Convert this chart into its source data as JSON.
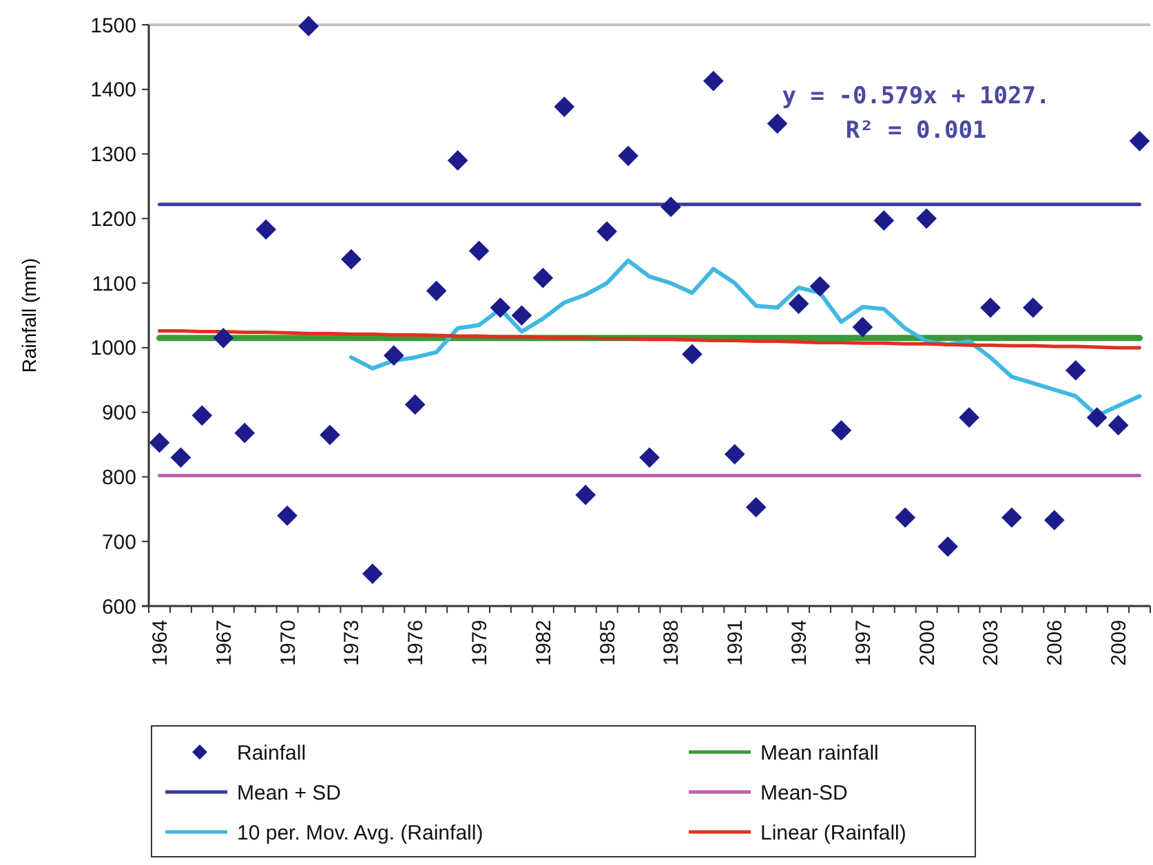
{
  "chart_data": {
    "type": "scatter",
    "ylabel": "Rainfall (mm)",
    "categories": [
      "1964",
      null,
      null,
      "1967",
      null,
      null,
      "1970",
      null,
      null,
      "1973",
      null,
      null,
      "1976",
      null,
      null,
      "1979",
      null,
      null,
      "1982",
      null,
      null,
      "1985",
      null,
      null,
      "1988",
      null,
      null,
      "1991",
      null,
      null,
      "1994",
      null,
      null,
      "1997",
      null,
      null,
      "2000",
      null,
      null,
      "2003",
      null,
      null,
      "2006",
      null,
      null,
      "2009",
      null
    ],
    "ylim": [
      600,
      1500
    ],
    "yticks": [
      600,
      700,
      800,
      900,
      1000,
      1100,
      1200,
      1300,
      1400,
      1500
    ],
    "grid": false,
    "legend": "bottom",
    "marker": "diamond",
    "annotations": [
      "y = -0.579x + 1027.",
      "R² = 0.001"
    ],
    "series": [
      {
        "name": "Rainfall",
        "color": "#1c1c8c",
        "values": [
          853,
          830,
          895,
          1015,
          868,
          1183,
          740,
          1498,
          865,
          1137,
          650,
          988,
          912,
          1088,
          1290,
          1150,
          1062,
          1050,
          1108,
          1373,
          772,
          1180,
          1297,
          830,
          1218,
          990,
          1413,
          835,
          753,
          1347,
          1068,
          1095,
          872,
          1032,
          1197,
          737,
          1200,
          692,
          892,
          1062,
          737,
          1062,
          733,
          965,
          892,
          880,
          1320
        ]
      },
      {
        "name": "Mean rainfall",
        "type": "line",
        "color": "#3a9a3a",
        "marker": "none",
        "values": [
          1015,
          1015,
          1015,
          1015,
          1015,
          1015,
          1015,
          1015,
          1015,
          1015,
          1015,
          1015,
          1015,
          1015,
          1015,
          1015,
          1015,
          1015,
          1015,
          1015,
          1015,
          1015,
          1015,
          1015,
          1015,
          1015,
          1015,
          1015,
          1015,
          1015,
          1015,
          1015,
          1015,
          1015,
          1015,
          1015,
          1015,
          1015,
          1015,
          1015,
          1015,
          1015,
          1015,
          1015,
          1015,
          1015,
          1015
        ]
      },
      {
        "name": "Mean + SD",
        "type": "line",
        "color": "#3a3aa0",
        "marker": "none",
        "values": [
          1222,
          1222,
          1222,
          1222,
          1222,
          1222,
          1222,
          1222,
          1222,
          1222,
          1222,
          1222,
          1222,
          1222,
          1222,
          1222,
          1222,
          1222,
          1222,
          1222,
          1222,
          1222,
          1222,
          1222,
          1222,
          1222,
          1222,
          1222,
          1222,
          1222,
          1222,
          1222,
          1222,
          1222,
          1222,
          1222,
          1222,
          1222,
          1222,
          1222,
          1222,
          1222,
          1222,
          1222,
          1222,
          1222,
          1222
        ]
      },
      {
        "name": "Mean-SD",
        "type": "line",
        "color": "#c060b0",
        "marker": "none",
        "values": [
          802,
          802,
          802,
          802,
          802,
          802,
          802,
          802,
          802,
          802,
          802,
          802,
          802,
          802,
          802,
          802,
          802,
          802,
          802,
          802,
          802,
          802,
          802,
          802,
          802,
          802,
          802,
          802,
          802,
          802,
          802,
          802,
          802,
          802,
          802,
          802,
          802,
          802,
          802,
          802,
          802,
          802,
          802,
          802,
          802,
          802,
          802
        ]
      },
      {
        "name": "10 per. Mov. Avg. (Rainfall)",
        "type": "line",
        "color": "#40b8e0",
        "marker": "none",
        "values": [
          null,
          null,
          null,
          null,
          null,
          null,
          null,
          null,
          null,
          985,
          968,
          980,
          985,
          993,
          1030,
          1035,
          1060,
          1025,
          1045,
          1070,
          1082,
          1100,
          1135,
          1110,
          1100,
          1085,
          1122,
          1100,
          1065,
          1062,
          1093,
          1085,
          1040,
          1063,
          1060,
          1030,
          1010,
          1005,
          1010,
          985,
          955,
          945,
          935,
          925,
          895,
          910,
          925
        ]
      },
      {
        "name": "Linear (Rainfall)",
        "type": "line",
        "color": "#e03020",
        "marker": "none",
        "values": [
          1026,
          1026,
          1025,
          1025,
          1024,
          1024,
          1023,
          1022,
          1022,
          1021,
          1021,
          1020,
          1020,
          1019,
          1018,
          1018,
          1017,
          1017,
          1016,
          1015,
          1015,
          1014,
          1014,
          1013,
          1013,
          1012,
          1011,
          1011,
          1010,
          1010,
          1009,
          1008,
          1008,
          1007,
          1007,
          1006,
          1006,
          1005,
          1004,
          1004,
          1003,
          1003,
          1002,
          1002,
          1001,
          1000,
          1000
        ]
      }
    ]
  }
}
